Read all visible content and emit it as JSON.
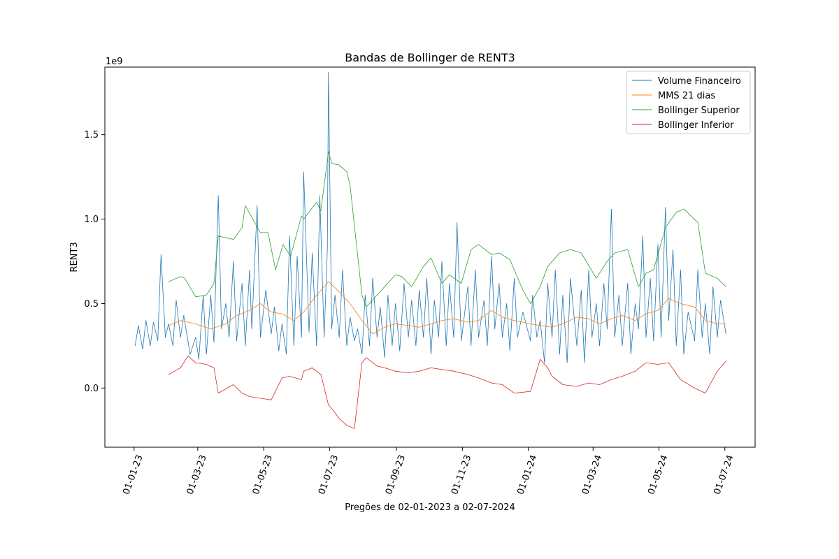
{
  "chart_data": {
    "type": "line",
    "title": "Bandas de Bollinger de RENT3",
    "xlabel": "Pregões de 02-01-2023 a 02-07-2024",
    "ylabel": "RENT3",
    "y_offset_label": "1e9",
    "ylim": [
      -0.35,
      1.9
    ],
    "xlim": [
      "2022-12-05",
      "2024-07-29"
    ],
    "grid": false,
    "legend_position": "top-right",
    "x_ticks": [
      {
        "date": "2023-01-01",
        "label": "01-01-23"
      },
      {
        "date": "2023-03-01",
        "label": "01-03-23"
      },
      {
        "date": "2023-05-01",
        "label": "01-05-23"
      },
      {
        "date": "2023-07-01",
        "label": "01-07-23"
      },
      {
        "date": "2023-09-01",
        "label": "01-09-23"
      },
      {
        "date": "2023-11-01",
        "label": "01-11-23"
      },
      {
        "date": "2024-01-01",
        "label": "01-01-24"
      },
      {
        "date": "2024-03-01",
        "label": "01-03-24"
      },
      {
        "date": "2024-05-01",
        "label": "01-05-24"
      },
      {
        "date": "2024-07-01",
        "label": "01-07-24"
      }
    ],
    "y_ticks": [
      {
        "value": 0.0,
        "label": "0.0"
      },
      {
        "value": 0.5,
        "label": "0.5"
      },
      {
        "value": 1.0,
        "label": "1.0"
      },
      {
        "value": 1.5,
        "label": "1.5"
      }
    ],
    "series": [
      {
        "name": "Volume Financeiro",
        "color": "#1f77b4",
        "x": [
          "2023-01-02",
          "2023-01-05",
          "2023-01-09",
          "2023-01-12",
          "2023-01-16",
          "2023-01-19",
          "2023-01-23",
          "2023-01-26",
          "2023-01-30",
          "2023-02-02",
          "2023-02-06",
          "2023-02-09",
          "2023-02-13",
          "2023-02-16",
          "2023-02-22",
          "2023-02-27",
          "2023-03-02",
          "2023-03-06",
          "2023-03-09",
          "2023-03-13",
          "2023-03-16",
          "2023-03-20",
          "2023-03-23",
          "2023-03-27",
          "2023-03-30",
          "2023-04-03",
          "2023-04-06",
          "2023-04-11",
          "2023-04-14",
          "2023-04-18",
          "2023-04-20",
          "2023-04-25",
          "2023-04-28",
          "2023-05-03",
          "2023-05-08",
          "2023-05-11",
          "2023-05-15",
          "2023-05-18",
          "2023-05-22",
          "2023-05-25",
          "2023-05-29",
          "2023-06-01",
          "2023-06-05",
          "2023-06-07",
          "2023-06-12",
          "2023-06-15",
          "2023-06-19",
          "2023-06-22",
          "2023-06-26",
          "2023-06-29",
          "2023-06-30",
          "2023-07-03",
          "2023-07-06",
          "2023-07-10",
          "2023-07-13",
          "2023-07-17",
          "2023-07-20",
          "2023-07-24",
          "2023-07-27",
          "2023-07-31",
          "2023-08-03",
          "2023-08-07",
          "2023-08-10",
          "2023-08-14",
          "2023-08-17",
          "2023-08-21",
          "2023-08-24",
          "2023-08-28",
          "2023-08-31",
          "2023-09-04",
          "2023-09-08",
          "2023-09-12",
          "2023-09-15",
          "2023-09-19",
          "2023-09-22",
          "2023-09-26",
          "2023-09-29",
          "2023-10-03",
          "2023-10-06",
          "2023-10-10",
          "2023-10-13",
          "2023-10-17",
          "2023-10-20",
          "2023-10-24",
          "2023-10-27",
          "2023-10-31",
          "2023-11-06",
          "2023-11-09",
          "2023-11-13",
          "2023-11-16",
          "2023-11-21",
          "2023-11-24",
          "2023-11-28",
          "2023-12-01",
          "2023-12-05",
          "2023-12-08",
          "2023-12-12",
          "2023-12-15",
          "2023-12-19",
          "2023-12-22",
          "2023-12-27",
          "2024-01-03",
          "2024-01-05",
          "2024-01-09",
          "2024-01-12",
          "2024-01-16",
          "2024-01-19",
          "2024-01-23",
          "2024-01-26",
          "2024-01-30",
          "2024-02-02",
          "2024-02-06",
          "2024-02-09",
          "2024-02-15",
          "2024-02-19",
          "2024-02-22",
          "2024-02-26",
          "2024-02-29",
          "2024-03-04",
          "2024-03-07",
          "2024-03-11",
          "2024-03-14",
          "2024-03-18",
          "2024-03-21",
          "2024-03-25",
          "2024-03-28",
          "2024-04-02",
          "2024-04-05",
          "2024-04-09",
          "2024-04-12",
          "2024-04-16",
          "2024-04-19",
          "2024-04-23",
          "2024-04-26",
          "2024-04-30",
          "2024-05-03",
          "2024-05-07",
          "2024-05-10",
          "2024-05-14",
          "2024-05-17",
          "2024-05-21",
          "2024-05-24",
          "2024-05-28",
          "2024-06-03",
          "2024-06-06",
          "2024-06-10",
          "2024-06-13",
          "2024-06-17",
          "2024-06-20",
          "2024-06-24",
          "2024-06-27",
          "2024-07-02"
        ],
        "values": [
          0.25,
          0.37,
          0.23,
          0.4,
          0.25,
          0.39,
          0.28,
          0.79,
          0.3,
          0.38,
          0.25,
          0.52,
          0.3,
          0.43,
          0.2,
          0.3,
          0.17,
          0.55,
          0.2,
          0.55,
          0.27,
          1.14,
          0.35,
          0.5,
          0.3,
          0.75,
          0.28,
          0.62,
          0.25,
          0.7,
          0.35,
          1.08,
          0.3,
          0.58,
          0.32,
          0.48,
          0.22,
          0.38,
          0.2,
          0.9,
          0.25,
          0.78,
          0.3,
          1.28,
          0.33,
          0.8,
          0.25,
          1.14,
          0.3,
          0.82,
          1.87,
          0.35,
          0.55,
          0.3,
          0.7,
          0.25,
          0.42,
          0.28,
          0.35,
          0.2,
          0.55,
          0.25,
          0.65,
          0.3,
          0.48,
          0.18,
          0.55,
          0.25,
          0.5,
          0.22,
          0.62,
          0.3,
          0.52,
          0.25,
          0.58,
          0.3,
          0.65,
          0.2,
          0.52,
          0.3,
          0.75,
          0.25,
          0.62,
          0.3,
          0.98,
          0.28,
          0.6,
          0.25,
          0.7,
          0.3,
          0.52,
          0.25,
          0.78,
          0.35,
          0.62,
          0.3,
          0.5,
          0.22,
          0.65,
          0.3,
          0.45,
          0.28,
          0.55,
          0.3,
          0.4,
          0.15,
          0.62,
          0.3,
          0.7,
          0.2,
          0.55,
          0.15,
          0.65,
          0.25,
          0.58,
          0.15,
          0.7,
          0.3,
          0.5,
          0.25,
          0.62,
          0.35,
          1.06,
          0.3,
          0.55,
          0.25,
          0.62,
          0.2,
          0.5,
          0.35,
          0.9,
          0.3,
          0.65,
          0.28,
          0.85,
          0.3,
          1.07,
          0.4,
          0.82,
          0.25,
          0.7,
          0.2,
          0.45,
          0.28,
          0.7,
          0.3,
          0.5,
          0.2,
          0.6,
          0.3,
          0.52,
          0.32
        ]
      },
      {
        "name": "MMS 21 dias",
        "color": "#ff7f0e",
        "x": [
          "2023-02-02",
          "2023-02-13",
          "2023-02-27",
          "2023-03-13",
          "2023-03-27",
          "2023-04-06",
          "2023-04-18",
          "2023-04-28",
          "2023-05-08",
          "2023-05-18",
          "2023-05-29",
          "2023-06-07",
          "2023-06-19",
          "2023-06-30",
          "2023-07-10",
          "2023-07-20",
          "2023-07-31",
          "2023-08-10",
          "2023-08-21",
          "2023-08-31",
          "2023-09-12",
          "2023-09-22",
          "2023-10-03",
          "2023-10-13",
          "2023-10-24",
          "2023-11-06",
          "2023-11-16",
          "2023-11-28",
          "2023-12-08",
          "2023-12-19",
          "2024-01-03",
          "2024-01-12",
          "2024-01-23",
          "2024-02-02",
          "2024-02-15",
          "2024-02-26",
          "2024-03-07",
          "2024-03-18",
          "2024-03-28",
          "2024-04-09",
          "2024-04-19",
          "2024-04-30",
          "2024-05-10",
          "2024-05-21",
          "2024-06-03",
          "2024-06-13",
          "2024-06-24",
          "2024-07-02"
        ],
        "values": [
          0.37,
          0.4,
          0.38,
          0.35,
          0.38,
          0.43,
          0.46,
          0.5,
          0.45,
          0.44,
          0.4,
          0.45,
          0.55,
          0.63,
          0.57,
          0.5,
          0.4,
          0.32,
          0.36,
          0.38,
          0.37,
          0.36,
          0.38,
          0.4,
          0.41,
          0.39,
          0.4,
          0.46,
          0.42,
          0.4,
          0.38,
          0.37,
          0.36,
          0.38,
          0.42,
          0.41,
          0.38,
          0.41,
          0.43,
          0.4,
          0.44,
          0.46,
          0.53,
          0.5,
          0.48,
          0.4,
          0.38,
          0.38
        ]
      },
      {
        "name": "Bollinger Superior",
        "color": "#2ca02c",
        "x": [
          "2023-02-02",
          "2023-02-13",
          "2023-02-17",
          "2023-02-27",
          "2023-03-09",
          "2023-03-16",
          "2023-03-20",
          "2023-04-03",
          "2023-04-11",
          "2023-04-14",
          "2023-04-28",
          "2023-05-05",
          "2023-05-12",
          "2023-05-19",
          "2023-05-26",
          "2023-06-05",
          "2023-06-07",
          "2023-06-19",
          "2023-06-23",
          "2023-06-30",
          "2023-07-03",
          "2023-07-10",
          "2023-07-17",
          "2023-07-20",
          "2023-07-31",
          "2023-08-04",
          "2023-08-14",
          "2023-08-21",
          "2023-08-31",
          "2023-09-06",
          "2023-09-15",
          "2023-09-26",
          "2023-10-03",
          "2023-10-13",
          "2023-10-20",
          "2023-10-31",
          "2023-11-09",
          "2023-11-16",
          "2023-11-28",
          "2023-12-05",
          "2023-12-15",
          "2023-12-27",
          "2024-01-03",
          "2024-01-12",
          "2024-01-19",
          "2024-01-30",
          "2024-02-09",
          "2024-02-19",
          "2024-03-04",
          "2024-03-14",
          "2024-03-21",
          "2024-04-02",
          "2024-04-12",
          "2024-04-19",
          "2024-04-26",
          "2024-05-07",
          "2024-05-17",
          "2024-05-24",
          "2024-06-06",
          "2024-06-13",
          "2024-06-24",
          "2024-07-02"
        ],
        "values": [
          0.63,
          0.66,
          0.65,
          0.54,
          0.55,
          0.62,
          0.9,
          0.88,
          0.95,
          1.08,
          0.92,
          0.92,
          0.7,
          0.85,
          0.78,
          1.02,
          1.0,
          1.1,
          1.05,
          1.4,
          1.33,
          1.32,
          1.28,
          1.2,
          0.55,
          0.48,
          0.55,
          0.6,
          0.67,
          0.66,
          0.6,
          0.72,
          0.77,
          0.62,
          0.67,
          0.62,
          0.82,
          0.85,
          0.79,
          0.8,
          0.76,
          0.58,
          0.5,
          0.6,
          0.72,
          0.8,
          0.82,
          0.8,
          0.65,
          0.75,
          0.8,
          0.82,
          0.6,
          0.68,
          0.7,
          0.95,
          1.04,
          1.06,
          0.98,
          0.68,
          0.65,
          0.6
        ]
      },
      {
        "name": "Bollinger Inferior",
        "color": "#d62728",
        "x": [
          "2023-02-02",
          "2023-02-13",
          "2023-02-20",
          "2023-02-27",
          "2023-03-09",
          "2023-03-16",
          "2023-03-20",
          "2023-04-03",
          "2023-04-11",
          "2023-04-18",
          "2023-04-28",
          "2023-05-08",
          "2023-05-18",
          "2023-05-25",
          "2023-06-05",
          "2023-06-07",
          "2023-06-15",
          "2023-06-23",
          "2023-06-30",
          "2023-07-03",
          "2023-07-10",
          "2023-07-17",
          "2023-07-24",
          "2023-07-31",
          "2023-08-04",
          "2023-08-14",
          "2023-08-21",
          "2023-08-31",
          "2023-09-12",
          "2023-09-22",
          "2023-10-03",
          "2023-10-13",
          "2023-10-24",
          "2023-11-06",
          "2023-11-16",
          "2023-11-28",
          "2023-12-08",
          "2023-12-19",
          "2024-01-03",
          "2024-01-12",
          "2024-01-19",
          "2024-01-23",
          "2024-02-02",
          "2024-02-15",
          "2024-02-26",
          "2024-03-07",
          "2024-03-18",
          "2024-03-28",
          "2024-04-09",
          "2024-04-19",
          "2024-04-30",
          "2024-05-10",
          "2024-05-21",
          "2024-06-03",
          "2024-06-13",
          "2024-06-24",
          "2024-07-02"
        ],
        "values": [
          0.08,
          0.12,
          0.19,
          0.15,
          0.14,
          0.12,
          -0.03,
          0.02,
          -0.03,
          -0.05,
          -0.06,
          -0.07,
          0.06,
          0.07,
          0.05,
          0.1,
          0.12,
          0.08,
          -0.1,
          -0.12,
          -0.18,
          -0.22,
          -0.24,
          0.15,
          0.18,
          0.13,
          0.12,
          0.1,
          0.09,
          0.1,
          0.12,
          0.11,
          0.1,
          0.08,
          0.06,
          0.03,
          0.02,
          -0.03,
          -0.02,
          0.17,
          0.12,
          0.07,
          0.02,
          0.01,
          0.03,
          0.02,
          0.05,
          0.07,
          0.1,
          0.15,
          0.14,
          0.15,
          0.05,
          0.0,
          -0.03,
          0.1,
          0.16
        ]
      }
    ]
  }
}
